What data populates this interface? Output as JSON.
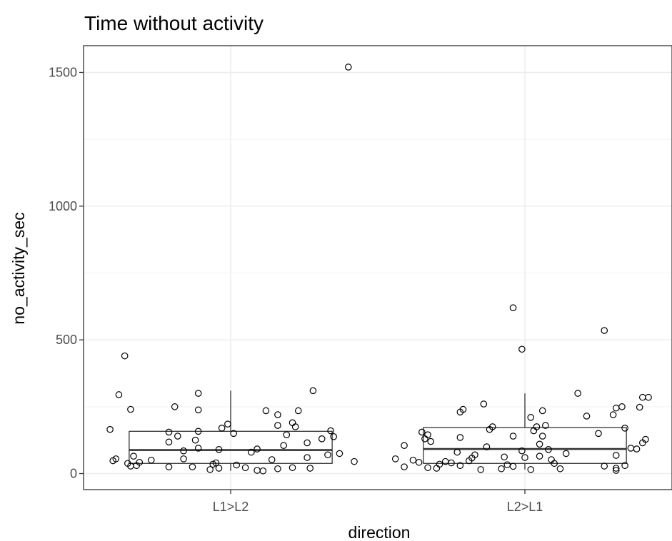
{
  "chart_data": {
    "type": "box",
    "title": "Time without activity",
    "xlabel": "direction",
    "ylabel": "no_activity_sec",
    "categories": [
      "L1>L2",
      "L2>L1"
    ],
    "ylim": [
      -60,
      1600
    ],
    "yticks": [
      0,
      500,
      1000,
      1500
    ],
    "grid": true,
    "boxes": [
      {
        "category": "L1>L2",
        "q1": 38,
        "median": 88,
        "q3": 158,
        "whisker_low": 10,
        "whisker_high": 310
      },
      {
        "category": "L2>L1",
        "q1": 38,
        "median": 92,
        "q3": 172,
        "whisker_low": 15,
        "whisker_high": 300
      }
    ],
    "points": [
      {
        "x": "L1>L2",
        "y": 1520,
        "jitter": 0.4
      },
      {
        "x": "L1>L2",
        "y": 440,
        "jitter": -0.36
      },
      {
        "x": "L1>L2",
        "y": 310,
        "jitter": 0.28
      },
      {
        "x": "L1>L2",
        "y": 300,
        "jitter": -0.11
      },
      {
        "x": "L1>L2",
        "y": 295,
        "jitter": -0.38
      },
      {
        "x": "L1>L2",
        "y": 250,
        "jitter": -0.19
      },
      {
        "x": "L1>L2",
        "y": 240,
        "jitter": -0.34
      },
      {
        "x": "L1>L2",
        "y": 238,
        "jitter": -0.11
      },
      {
        "x": "L1>L2",
        "y": 235,
        "jitter": 0.12
      },
      {
        "x": "L1>L2",
        "y": 235,
        "jitter": 0.23
      },
      {
        "x": "L1>L2",
        "y": 220,
        "jitter": 0.16
      },
      {
        "x": "L1>L2",
        "y": 190,
        "jitter": 0.21
      },
      {
        "x": "L1>L2",
        "y": 185,
        "jitter": -0.01
      },
      {
        "x": "L1>L2",
        "y": 180,
        "jitter": 0.16
      },
      {
        "x": "L1>L2",
        "y": 175,
        "jitter": 0.22
      },
      {
        "x": "L1>L2",
        "y": 170,
        "jitter": -0.03
      },
      {
        "x": "L1>L2",
        "y": 165,
        "jitter": -0.41
      },
      {
        "x": "L1>L2",
        "y": 160,
        "jitter": 0.34
      },
      {
        "x": "L1>L2",
        "y": 158,
        "jitter": -0.11
      },
      {
        "x": "L1>L2",
        "y": 155,
        "jitter": -0.21
      },
      {
        "x": "L1>L2",
        "y": 150,
        "jitter": 0.01
      },
      {
        "x": "L1>L2",
        "y": 145,
        "jitter": 0.19
      },
      {
        "x": "L1>L2",
        "y": 140,
        "jitter": -0.18
      },
      {
        "x": "L1>L2",
        "y": 138,
        "jitter": 0.35
      },
      {
        "x": "L1>L2",
        "y": 130,
        "jitter": 0.31
      },
      {
        "x": "L1>L2",
        "y": 125,
        "jitter": -0.12
      },
      {
        "x": "L1>L2",
        "y": 118,
        "jitter": -0.21
      },
      {
        "x": "L1>L2",
        "y": 115,
        "jitter": 0.26
      },
      {
        "x": "L1>L2",
        "y": 105,
        "jitter": 0.18
      },
      {
        "x": "L1>L2",
        "y": 95,
        "jitter": -0.11
      },
      {
        "x": "L1>L2",
        "y": 92,
        "jitter": 0.09
      },
      {
        "x": "L1>L2",
        "y": 90,
        "jitter": -0.04
      },
      {
        "x": "L1>L2",
        "y": 85,
        "jitter": -0.16
      },
      {
        "x": "L1>L2",
        "y": 80,
        "jitter": 0.07
      },
      {
        "x": "L1>L2",
        "y": 75,
        "jitter": 0.37
      },
      {
        "x": "L1>L2",
        "y": 70,
        "jitter": 0.33
      },
      {
        "x": "L1>L2",
        "y": 65,
        "jitter": -0.33
      },
      {
        "x": "L1>L2",
        "y": 60,
        "jitter": 0.26
      },
      {
        "x": "L1>L2",
        "y": 55,
        "jitter": -0.39
      },
      {
        "x": "L1>L2",
        "y": 55,
        "jitter": -0.16
      },
      {
        "x": "L1>L2",
        "y": 52,
        "jitter": 0.14
      },
      {
        "x": "L1>L2",
        "y": 50,
        "jitter": -0.27
      },
      {
        "x": "L1>L2",
        "y": 48,
        "jitter": -0.4
      },
      {
        "x": "L1>L2",
        "y": 45,
        "jitter": 0.42
      },
      {
        "x": "L1>L2",
        "y": 42,
        "jitter": -0.31
      },
      {
        "x": "L1>L2",
        "y": 40,
        "jitter": -0.05
      },
      {
        "x": "L1>L2",
        "y": 38,
        "jitter": -0.35
      },
      {
        "x": "L1>L2",
        "y": 35,
        "jitter": -0.06
      },
      {
        "x": "L1>L2",
        "y": 32,
        "jitter": 0.02
      },
      {
        "x": "L1>L2",
        "y": 30,
        "jitter": -0.32
      },
      {
        "x": "L1>L2",
        "y": 28,
        "jitter": -0.34
      },
      {
        "x": "L1>L2",
        "y": 25,
        "jitter": -0.21
      },
      {
        "x": "L1>L2",
        "y": 25,
        "jitter": -0.13
      },
      {
        "x": "L1>L2",
        "y": 22,
        "jitter": 0.05
      },
      {
        "x": "L1>L2",
        "y": 22,
        "jitter": 0.21
      },
      {
        "x": "L1>L2",
        "y": 20,
        "jitter": 0.27
      },
      {
        "x": "L1>L2",
        "y": 20,
        "jitter": -0.04
      },
      {
        "x": "L1>L2",
        "y": 18,
        "jitter": 0.16
      },
      {
        "x": "L1>L2",
        "y": 15,
        "jitter": -0.07
      },
      {
        "x": "L1>L2",
        "y": 12,
        "jitter": 0.09
      },
      {
        "x": "L1>L2",
        "y": 10,
        "jitter": 0.11
      },
      {
        "x": "L2>L1",
        "y": 620,
        "jitter": -0.04
      },
      {
        "x": "L2>L1",
        "y": 535,
        "jitter": 0.27
      },
      {
        "x": "L2>L1",
        "y": 465,
        "jitter": -0.01
      },
      {
        "x": "L2>L1",
        "y": 300,
        "jitter": 0.18
      },
      {
        "x": "L2>L1",
        "y": 285,
        "jitter": 0.4
      },
      {
        "x": "L2>L1",
        "y": 285,
        "jitter": 0.42
      },
      {
        "x": "L2>L1",
        "y": 260,
        "jitter": -0.14
      },
      {
        "x": "L2>L1",
        "y": 250,
        "jitter": 0.33
      },
      {
        "x": "L2>L1",
        "y": 248,
        "jitter": 0.39
      },
      {
        "x": "L2>L1",
        "y": 245,
        "jitter": 0.31
      },
      {
        "x": "L2>L1",
        "y": 240,
        "jitter": -0.21
      },
      {
        "x": "L2>L1",
        "y": 235,
        "jitter": 0.06
      },
      {
        "x": "L2>L1",
        "y": 230,
        "jitter": -0.22
      },
      {
        "x": "L2>L1",
        "y": 220,
        "jitter": 0.3
      },
      {
        "x": "L2>L1",
        "y": 215,
        "jitter": 0.21
      },
      {
        "x": "L2>L1",
        "y": 210,
        "jitter": 0.02
      },
      {
        "x": "L2>L1",
        "y": 180,
        "jitter": 0.07
      },
      {
        "x": "L2>L1",
        "y": 175,
        "jitter": -0.11
      },
      {
        "x": "L2>L1",
        "y": 175,
        "jitter": 0.04
      },
      {
        "x": "L2>L1",
        "y": 170,
        "jitter": 0.34
      },
      {
        "x": "L2>L1",
        "y": 165,
        "jitter": -0.12
      },
      {
        "x": "L2>L1",
        "y": 160,
        "jitter": 0.03
      },
      {
        "x": "L2>L1",
        "y": 155,
        "jitter": -0.35
      },
      {
        "x": "L2>L1",
        "y": 150,
        "jitter": 0.25
      },
      {
        "x": "L2>L1",
        "y": 145,
        "jitter": -0.33
      },
      {
        "x": "L2>L1",
        "y": 140,
        "jitter": -0.04
      },
      {
        "x": "L2>L1",
        "y": 140,
        "jitter": 0.06
      },
      {
        "x": "L2>L1",
        "y": 135,
        "jitter": -0.22
      },
      {
        "x": "L2>L1",
        "y": 130,
        "jitter": -0.34
      },
      {
        "x": "L2>L1",
        "y": 128,
        "jitter": 0.41
      },
      {
        "x": "L2>L1",
        "y": 120,
        "jitter": -0.32
      },
      {
        "x": "L2>L1",
        "y": 115,
        "jitter": 0.4
      },
      {
        "x": "L2>L1",
        "y": 110,
        "jitter": 0.05
      },
      {
        "x": "L2>L1",
        "y": 105,
        "jitter": -0.41
      },
      {
        "x": "L2>L1",
        "y": 100,
        "jitter": -0.13
      },
      {
        "x": "L2>L1",
        "y": 95,
        "jitter": 0.36
      },
      {
        "x": "L2>L1",
        "y": 92,
        "jitter": 0.38
      },
      {
        "x": "L2>L1",
        "y": 90,
        "jitter": 0.08
      },
      {
        "x": "L2>L1",
        "y": 85,
        "jitter": -0.01
      },
      {
        "x": "L2>L1",
        "y": 80,
        "jitter": -0.23
      },
      {
        "x": "L2>L1",
        "y": 75,
        "jitter": 0.14
      },
      {
        "x": "L2>L1",
        "y": 70,
        "jitter": -0.17
      },
      {
        "x": "L2>L1",
        "y": 68,
        "jitter": 0.31
      },
      {
        "x": "L2>L1",
        "y": 65,
        "jitter": 0.05
      },
      {
        "x": "L2>L1",
        "y": 62,
        "jitter": -0.07
      },
      {
        "x": "L2>L1",
        "y": 60,
        "jitter": 0.0
      },
      {
        "x": "L2>L1",
        "y": 58,
        "jitter": -0.18
      },
      {
        "x": "L2>L1",
        "y": 55,
        "jitter": -0.44
      },
      {
        "x": "L2>L1",
        "y": 52,
        "jitter": 0.09
      },
      {
        "x": "L2>L1",
        "y": 50,
        "jitter": -0.38
      },
      {
        "x": "L2>L1",
        "y": 48,
        "jitter": -0.19
      },
      {
        "x": "L2>L1",
        "y": 45,
        "jitter": -0.27
      },
      {
        "x": "L2>L1",
        "y": 42,
        "jitter": -0.36
      },
      {
        "x": "L2>L1",
        "y": 40,
        "jitter": -0.25
      },
      {
        "x": "L2>L1",
        "y": 38,
        "jitter": 0.1
      },
      {
        "x": "L2>L1",
        "y": 35,
        "jitter": -0.29
      },
      {
        "x": "L2>L1",
        "y": 33,
        "jitter": -0.06
      },
      {
        "x": "L2>L1",
        "y": 30,
        "jitter": -0.22
      },
      {
        "x": "L2>L1",
        "y": 30,
        "jitter": 0.34
      },
      {
        "x": "L2>L1",
        "y": 28,
        "jitter": 0.27
      },
      {
        "x": "L2>L1",
        "y": 27,
        "jitter": -0.04
      },
      {
        "x": "L2>L1",
        "y": 25,
        "jitter": -0.41
      },
      {
        "x": "L2>L1",
        "y": 22,
        "jitter": -0.33
      },
      {
        "x": "L2>L1",
        "y": 20,
        "jitter": 0.31
      },
      {
        "x": "L2>L1",
        "y": 20,
        "jitter": -0.3
      },
      {
        "x": "L2>L1",
        "y": 18,
        "jitter": 0.12
      },
      {
        "x": "L2>L1",
        "y": 18,
        "jitter": -0.08
      },
      {
        "x": "L2>L1",
        "y": 15,
        "jitter": -0.15
      },
      {
        "x": "L2>L1",
        "y": 15,
        "jitter": 0.02
      },
      {
        "x": "L2>L1",
        "y": 12,
        "jitter": 0.31
      }
    ]
  }
}
